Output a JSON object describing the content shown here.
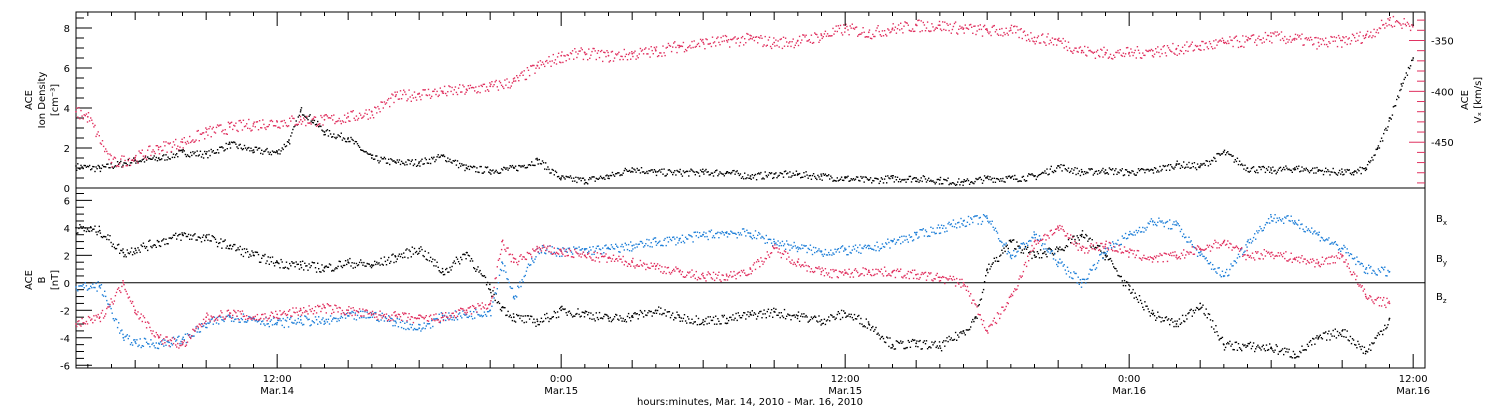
{
  "chart_data": [
    {
      "type": "scatter",
      "panel": "top",
      "ylabel_left": [
        "ACE",
        "Ion Density",
        "[cm⁻³]"
      ],
      "ylabel_right": [
        "ACE",
        "Vₓ [km/s]"
      ],
      "ylim_left": [
        0,
        8.8
      ],
      "yticks_left": [
        "0",
        "2",
        "4",
        "6",
        "8"
      ],
      "ylim_right": [
        -495,
        -322
      ],
      "yticks_right": [
        "-350",
        "-400",
        "-450"
      ],
      "xlim_hours": [
        3.5,
        60.5
      ],
      "series": [
        {
          "name": "",
          "axis": "left",
          "color": "#000000",
          "x": [
            3.5,
            4.5,
            6,
            7,
            8,
            9,
            10,
            11,
            12,
            12.5,
            13,
            13.5,
            14,
            15,
            16,
            17,
            18,
            19,
            20,
            21,
            22,
            23,
            24,
            25,
            26,
            27,
            28,
            29,
            30,
            31,
            32,
            33,
            34,
            35,
            36,
            37,
            38,
            39,
            40,
            41,
            42,
            43,
            44,
            45,
            46,
            47,
            48,
            49,
            50,
            51,
            52,
            53,
            54,
            55,
            56,
            57,
            57.5,
            58,
            58.5,
            59,
            59.5,
            60
          ],
          "y": [
            1.1,
            1.0,
            1.4,
            1.5,
            1.8,
            1.7,
            2.2,
            1.9,
            1.8,
            2.4,
            3.9,
            3.4,
            2.8,
            2.5,
            1.5,
            1.3,
            1.3,
            1.6,
            1.0,
            0.9,
            1.0,
            1.4,
            0.5,
            0.4,
            0.6,
            1.0,
            0.8,
            0.8,
            0.8,
            0.8,
            0.6,
            0.7,
            0.7,
            0.6,
            0.5,
            0.4,
            0.5,
            0.5,
            0.4,
            0.3,
            0.5,
            0.5,
            0.6,
            1.1,
            0.8,
            0.9,
            0.8,
            0.9,
            1.2,
            1.1,
            1.8,
            1.0,
            0.9,
            1.0,
            0.9,
            0.8,
            0.8,
            1.0,
            2.0,
            3.5,
            5.2,
            6.5
          ]
        },
        {
          "name": "",
          "axis": "right",
          "color": "#e0305f",
          "x": [
            3.5,
            4,
            5,
            6,
            7,
            8,
            9,
            10,
            11,
            12,
            13,
            14,
            15,
            16,
            17,
            18,
            19,
            20,
            21,
            22,
            23,
            24,
            25,
            26,
            27,
            28,
            29,
            30,
            31,
            32,
            33,
            34,
            35,
            36,
            37,
            38,
            39,
            40,
            41,
            42,
            43,
            44,
            45,
            46,
            47,
            48,
            49,
            50,
            51,
            52,
            53,
            54,
            55,
            56,
            57,
            58,
            59,
            60
          ],
          "y": [
            -420,
            -425,
            -470,
            -465,
            -455,
            -450,
            -440,
            -435,
            -432,
            -430,
            -428,
            -428,
            -425,
            -420,
            -405,
            -402,
            -400,
            -398,
            -395,
            -390,
            -375,
            -365,
            -362,
            -365,
            -363,
            -360,
            -355,
            -352,
            -350,
            -348,
            -352,
            -350,
            -345,
            -338,
            -342,
            -338,
            -335,
            -335,
            -338,
            -340,
            -340,
            -347,
            -350,
            -360,
            -362,
            -362,
            -360,
            -358,
            -355,
            -352,
            -350,
            -346,
            -348,
            -352,
            -350,
            -345,
            -330,
            -335
          ]
        }
      ]
    },
    {
      "type": "scatter",
      "panel": "bottom",
      "ylabel_left": [
        "ACE",
        "B",
        "[nT]"
      ],
      "ylim": [
        -6.2,
        6.9
      ],
      "yticks": [
        "-6",
        "-4",
        "-2",
        "0",
        "2",
        "4",
        "6"
      ],
      "xlim_hours": [
        3.5,
        60.5
      ],
      "legend_placement": "right",
      "series": [
        {
          "name": "Bₓ",
          "color": "#000000",
          "x": [
            3.5,
            4.5,
            5.5,
            6,
            7,
            8,
            9,
            10,
            11,
            12,
            13,
            14,
            15,
            16,
            17,
            18,
            19,
            20,
            21,
            21.5,
            22,
            23,
            24,
            25,
            26,
            27,
            28,
            29,
            30,
            31,
            32,
            33,
            34,
            35,
            36,
            37,
            38,
            39,
            40,
            41,
            41.5,
            42,
            43,
            44,
            45,
            46,
            47,
            48,
            49,
            50,
            51,
            52,
            53,
            54,
            55,
            56,
            57,
            58,
            59
          ],
          "y": [
            4.0,
            3.8,
            2.2,
            2.5,
            3.0,
            3.5,
            3.3,
            2.7,
            2.0,
            1.5,
            1.3,
            1.1,
            1.5,
            1.3,
            1.9,
            2.5,
            0.8,
            2.2,
            -0.5,
            -1.8,
            -2.5,
            -2.8,
            -2.0,
            -2.2,
            -2.6,
            -2.4,
            -2.0,
            -2.5,
            -2.7,
            -2.6,
            -2.3,
            -2.1,
            -2.4,
            -2.7,
            -2.2,
            -3.0,
            -4.5,
            -4.4,
            -4.6,
            -3.5,
            -2.5,
            1.0,
            3.0,
            2.0,
            2.5,
            3.5,
            2.0,
            -0.5,
            -2.3,
            -3.0,
            -1.5,
            -4.5,
            -4.6,
            -4.7,
            -5.2,
            -4.0,
            -3.5,
            -5.0,
            -2.6
          ]
        },
        {
          "name": "B_y",
          "color": "#1f7fd8",
          "x": [
            3.5,
            4.5,
            5.5,
            6,
            7,
            8,
            9,
            10,
            11,
            12,
            13,
            14,
            15,
            16,
            17,
            18,
            19,
            20,
            21,
            21.5,
            22,
            23,
            24,
            25,
            26,
            27,
            28,
            29,
            30,
            31,
            32,
            33,
            34,
            35,
            36,
            37,
            38,
            39,
            40,
            41,
            42,
            43,
            44,
            45,
            46,
            47,
            48,
            49,
            50,
            51,
            52,
            53,
            54,
            55,
            56,
            57,
            58,
            59
          ],
          "y": [
            -0.3,
            -0.2,
            -4.0,
            -4.3,
            -4.4,
            -4.1,
            -3.0,
            -2.4,
            -2.6,
            -2.9,
            -2.7,
            -2.8,
            -2.4,
            -2.3,
            -2.8,
            -3.3,
            -2.4,
            -2.3,
            -2.0,
            1.5,
            -1.0,
            2.5,
            2.3,
            2.4,
            2.5,
            2.7,
            3.0,
            3.2,
            3.5,
            3.7,
            3.6,
            3.0,
            2.6,
            2.3,
            2.4,
            2.5,
            3.0,
            3.5,
            4.0,
            4.5,
            4.7,
            2.0,
            3.5,
            1.5,
            0.0,
            2.5,
            3.5,
            4.5,
            4.2,
            2.0,
            0.5,
            3.0,
            4.8,
            4.5,
            3.5,
            2.5,
            1.0,
            0.8
          ]
        },
        {
          "name": "B_z",
          "color": "#e0305f",
          "x": [
            3.5,
            4.5,
            5.5,
            6,
            7,
            8,
            9,
            10,
            11,
            12,
            13,
            14,
            15,
            16,
            17,
            18,
            19,
            20,
            21,
            21.5,
            22,
            23,
            24,
            25,
            26,
            27,
            28,
            29,
            30,
            31,
            32,
            33,
            34,
            35,
            36,
            37,
            38,
            39,
            40,
            41,
            42,
            43,
            44,
            45,
            46,
            47,
            48,
            49,
            50,
            51,
            52,
            53,
            54,
            55,
            56,
            57,
            58,
            59
          ],
          "y": [
            -3.0,
            -2.5,
            0.0,
            -2.0,
            -4.0,
            -4.5,
            -2.5,
            -2.2,
            -2.5,
            -2.3,
            -2.0,
            -1.8,
            -2.0,
            -2.3,
            -2.4,
            -2.6,
            -2.5,
            -2.0,
            -1.5,
            3.0,
            1.5,
            2.5,
            2.3,
            2.0,
            1.8,
            1.5,
            1.2,
            0.8,
            0.5,
            0.5,
            1.0,
            2.5,
            1.5,
            0.8,
            0.7,
            0.9,
            0.8,
            0.6,
            0.4,
            0.0,
            -3.5,
            -1.0,
            3.0,
            4.0,
            2.5,
            2.8,
            2.2,
            1.8,
            2.0,
            2.5,
            3.0,
            2.0,
            2.2,
            1.8,
            1.5,
            2.0,
            -1.0,
            -1.5
          ]
        }
      ]
    }
  ],
  "x_axis": {
    "tick_hours": [
      12,
      24,
      36,
      48,
      60
    ],
    "tick_labels": [
      {
        "time": "12:00",
        "date": "Mar.14"
      },
      {
        "time": "0:00",
        "date": "Mar.15"
      },
      {
        "time": "12:00",
        "date": "Mar.15"
      },
      {
        "time": "0:00",
        "date": "Mar.16"
      },
      {
        "time": "12:00",
        "date": "Mar.16"
      }
    ],
    "title": "hours:minutes, Mar. 14, 2010 - Mar. 16, 2010"
  }
}
